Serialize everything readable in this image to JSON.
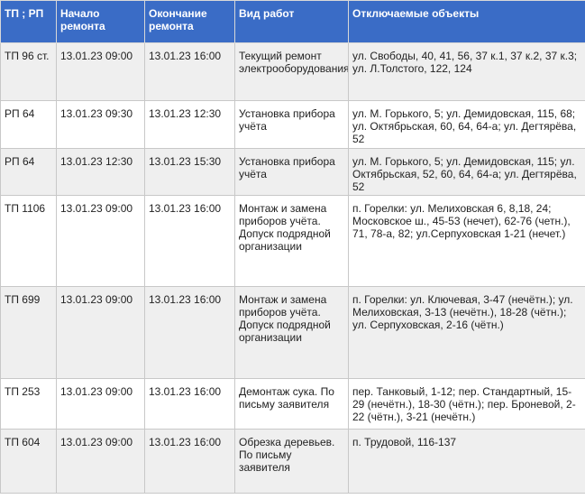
{
  "header": [
    "ТП ; РП",
    "Начало ремонта",
    "Окончание ремонта",
    "Вид работ",
    "Отключаемые объекты"
  ],
  "rows": [
    [
      "ТП 96 ст.",
      "13.01.23 09:00",
      "13.01.23 16:00",
      "Текущий ремонт электрооборудования",
      "ул. Свободы, 40, 41, 56, 37 к.1, 37 к.2, 37 к.3; ул. Л.Толстого, 122, 124"
    ],
    [
      "РП 64",
      "13.01.23 09:30",
      "13.01.23 12:30",
      "Установка прибора учёта",
      "ул. М. Горького, 5; ул. Демидовская, 115, 68; ул. Октябрьская, 60, 64, 64-а; ул. Дегтярёва, 52"
    ],
    [
      "РП 64",
      "13.01.23 12:30",
      "13.01.23 15:30",
      "Установка прибора учёта",
      "ул. М. Горького, 5; ул. Демидовская, 115; ул. Октябрьская, 52, 60, 64, 64-а; ул. Дегтярёва, 52"
    ],
    [
      "ТП 1106",
      "13.01.23 09:00",
      "13.01.23 16:00",
      "Монтаж и замена приборов учёта. Допуск подрядной организации",
      "п. Горелки: ул. Мелиховская 6, 8,18, 24; Московское ш., 45-53 (нечет), 62-76 (четн.), 71, 78-а, 82; ул.Серпуховская 1-21 (нечет.)"
    ],
    [
      "ТП 699",
      "13.01.23 09:00",
      "13.01.23 16:00",
      "Монтаж и замена приборов учёта. Допуск подрядной организации",
      "п. Горелки: ул. Ключевая, 3-47 (нечётн.); ул. Мелиховская, 3-13 (нечётн.), 18-28 (чётн.); ул. Серпуховская, 2-16 (чётн.)"
    ],
    [
      "ТП 253",
      "13.01.23 09:00",
      "13.01.23 16:00",
      "Демонтаж сука. По письму заявителя",
      "пер. Танковый, 1-12; пер. Стандартный, 15-29 (нечётн.), 18-30 (чётн.); пер. Броневой, 2-22 (чётн.), 3-21 (нечётн.)"
    ],
    [
      "ТП 604",
      "13.01.23 09:00",
      "13.01.23 16:00",
      "Обрезка деревьев. По письму заявителя",
      "п. Трудовой, 116-137"
    ]
  ]
}
